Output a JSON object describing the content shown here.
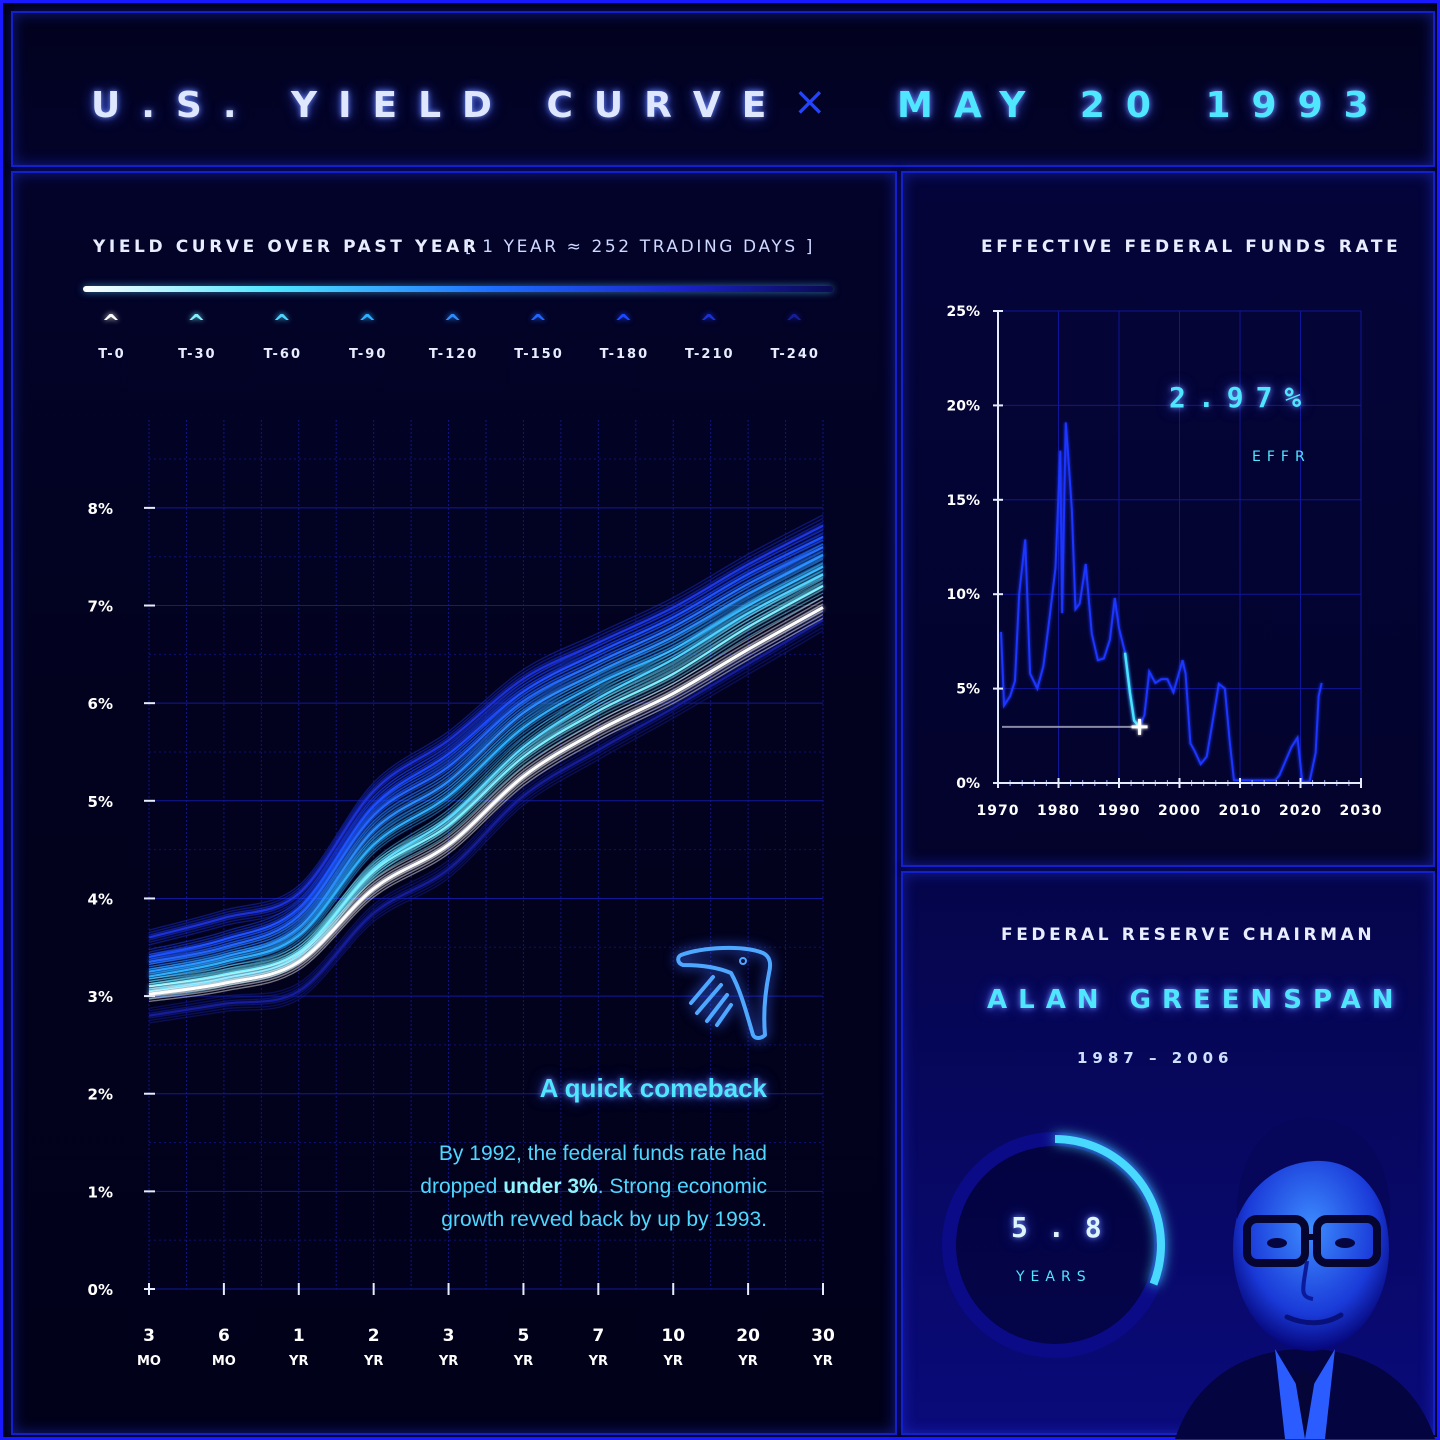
{
  "header": {
    "title_left": "U.S. YIELD CURVE",
    "separator": "×",
    "title_right": "MAY 20 1993"
  },
  "yield_panel": {
    "title": "YIELD CURVE OVER PAST YEAR",
    "subtitle": "[ 1 YEAR ≈ 252 TRADING DAYS ]",
    "legend": [
      {
        "label": "T-0",
        "color": "#ffffff"
      },
      {
        "label": "T-30",
        "color": "#7ef0ff"
      },
      {
        "label": "T-60",
        "color": "#4fd4ff"
      },
      {
        "label": "T-90",
        "color": "#2fb0ff"
      },
      {
        "label": "T-120",
        "color": "#2a8cff"
      },
      {
        "label": "T-150",
        "color": "#2266ff"
      },
      {
        "label": "T-180",
        "color": "#1e48ff"
      },
      {
        "label": "T-210",
        "color": "#1a30d8"
      },
      {
        "label": "T-240",
        "color": "#141e9a"
      }
    ],
    "annotation_title": "A quick comeback",
    "annotation_body_1": "By 1992, the federal funds rate had",
    "annotation_body_2a": "dropped ",
    "annotation_body_2b": "under 3%",
    "annotation_body_2c": ". Strong economic",
    "annotation_body_3": "growth revved back by up by 1993.",
    "icon": "boomerang-icon"
  },
  "effr_panel": {
    "title": "EFFECTIVE FEDERAL FUNDS RATE",
    "value": "2.97%",
    "value_label": "EFFR"
  },
  "chair_panel": {
    "title": "FEDERAL RESERVE CHAIRMAN",
    "name": "ALAN GREENSPAN",
    "term": "1987 – 2006",
    "tenure_value": "5.8",
    "tenure_unit": "YEARS",
    "tenure_fraction": 0.31
  },
  "colors": {
    "accent": "#1a1aff",
    "cyan": "#4fe6ff",
    "highlight": "#00e5ff"
  },
  "chart_data": [
    {
      "type": "line",
      "title": "",
      "categories": [
        "3 MO",
        "6 MO",
        "1 YR",
        "2 YR",
        "3 YR",
        "5 YR",
        "7 YR",
        "10 YR",
        "20 YR",
        "30 YR"
      ],
      "tick_labels": [
        [
          "3",
          "MO"
        ],
        [
          "6",
          "MO"
        ],
        [
          "1",
          "YR"
        ],
        [
          "2",
          "YR"
        ],
        [
          "3",
          "YR"
        ],
        [
          "5",
          "YR"
        ],
        [
          "7",
          "YR"
        ],
        [
          "10",
          "YR"
        ],
        [
          "20",
          "YR"
        ],
        [
          "30",
          "YR"
        ]
      ],
      "yticks": [
        "0%",
        "1%",
        "2%",
        "3%",
        "4%",
        "5%",
        "6%",
        "7%",
        "8%"
      ],
      "ylim": [
        0,
        8.9
      ],
      "grid": true,
      "series": [
        {
          "offset_days": 0,
          "color": "#ffffff",
          "values": [
            3.02,
            3.13,
            3.35,
            4.1,
            4.55,
            5.25,
            5.72,
            6.1,
            6.55,
            6.98
          ]
        },
        {
          "offset_days": 30,
          "color": "#7ef0ff",
          "values": [
            3.1,
            3.22,
            3.45,
            4.28,
            4.75,
            5.45,
            5.92,
            6.3,
            6.78,
            7.2
          ]
        },
        {
          "offset_days": 60,
          "color": "#4fd4ff",
          "values": [
            3.05,
            3.18,
            3.42,
            4.3,
            4.82,
            5.55,
            6.05,
            6.45,
            6.92,
            7.32
          ]
        },
        {
          "offset_days": 90,
          "color": "#2fb0ff",
          "values": [
            3.2,
            3.35,
            3.62,
            4.55,
            5.05,
            5.75,
            6.2,
            6.55,
            7.0,
            7.4
          ]
        },
        {
          "offset_days": 120,
          "color": "#2a8cff",
          "values": [
            3.25,
            3.4,
            3.7,
            4.7,
            5.2,
            5.9,
            6.32,
            6.68,
            7.12,
            7.52
          ]
        },
        {
          "offset_days": 150,
          "color": "#2266ff",
          "values": [
            3.35,
            3.5,
            3.82,
            4.85,
            5.35,
            6.02,
            6.42,
            6.78,
            7.22,
            7.6
          ]
        },
        {
          "offset_days": 180,
          "color": "#1e48ff",
          "values": [
            3.4,
            3.58,
            3.9,
            4.95,
            5.48,
            6.12,
            6.52,
            6.88,
            7.32,
            7.7
          ]
        },
        {
          "offset_days": 210,
          "color": "#1a30d8",
          "values": [
            3.6,
            3.8,
            4.05,
            5.1,
            5.62,
            6.25,
            6.62,
            6.98,
            7.42,
            7.82
          ]
        },
        {
          "offset_days": 240,
          "color": "#141e9a",
          "values": [
            2.8,
            2.92,
            3.05,
            3.85,
            4.3,
            5.05,
            5.52,
            5.95,
            6.4,
            6.85
          ]
        }
      ]
    },
    {
      "type": "line",
      "title": "EFFECTIVE FEDERAL FUNDS RATE",
      "xlim": [
        1970,
        2030
      ],
      "ylim": [
        0,
        25
      ],
      "xticks": [
        "1970",
        "1980",
        "1990",
        "2000",
        "2010",
        "2020",
        "2030"
      ],
      "yticks": [
        "0%",
        "5%",
        "10%",
        "15%",
        "20%",
        "25%"
      ],
      "grid": true,
      "marker": {
        "x": 1993.4,
        "y": 2.97
      },
      "series": [
        {
          "name": "EFFR",
          "points": [
            [
              1970.5,
              8.0
            ],
            [
              1971,
              4.1
            ],
            [
              1972,
              4.6
            ],
            [
              1972.8,
              5.4
            ],
            [
              1973.5,
              10.0
            ],
            [
              1974.5,
              12.9
            ],
            [
              1975.3,
              5.8
            ],
            [
              1976.5,
              5.0
            ],
            [
              1977.5,
              6.2
            ],
            [
              1978.5,
              8.7
            ],
            [
              1979.5,
              11.4
            ],
            [
              1980.3,
              17.6
            ],
            [
              1980.6,
              9.0
            ],
            [
              1981.2,
              19.1
            ],
            [
              1981.5,
              17.8
            ],
            [
              1982.2,
              14.5
            ],
            [
              1982.8,
              9.2
            ],
            [
              1983.5,
              9.5
            ],
            [
              1984.5,
              11.6
            ],
            [
              1985.5,
              7.9
            ],
            [
              1986.5,
              6.5
            ],
            [
              1987.5,
              6.6
            ],
            [
              1988.5,
              7.6
            ],
            [
              1989.3,
              9.8
            ],
            [
              1990,
              8.2
            ],
            [
              1991,
              6.9
            ],
            [
              1991.8,
              4.8
            ],
            [
              1992.5,
              3.3
            ],
            [
              1993.4,
              2.97
            ],
            [
              1994.2,
              3.6
            ],
            [
              1995,
              5.9
            ],
            [
              1996,
              5.3
            ],
            [
              1997,
              5.5
            ],
            [
              1998,
              5.5
            ],
            [
              1999,
              4.8
            ],
            [
              2000.5,
              6.5
            ],
            [
              2001,
              5.8
            ],
            [
              2001.8,
              2.1
            ],
            [
              2002.5,
              1.7
            ],
            [
              2003.5,
              1.0
            ],
            [
              2004.5,
              1.4
            ],
            [
              2005.5,
              3.3
            ],
            [
              2006.5,
              5.25
            ],
            [
              2007.5,
              5.0
            ],
            [
              2008.3,
              2.2
            ],
            [
              2009,
              0.15
            ],
            [
              2012,
              0.14
            ],
            [
              2015.8,
              0.14
            ],
            [
              2016.5,
              0.4
            ],
            [
              2017.5,
              1.15
            ],
            [
              2018.5,
              1.9
            ],
            [
              2019.5,
              2.4
            ],
            [
              2020.3,
              0.05
            ],
            [
              2021.5,
              0.08
            ],
            [
              2022.5,
              1.6
            ],
            [
              2023,
              4.6
            ],
            [
              2023.5,
              5.3
            ]
          ]
        }
      ]
    }
  ]
}
